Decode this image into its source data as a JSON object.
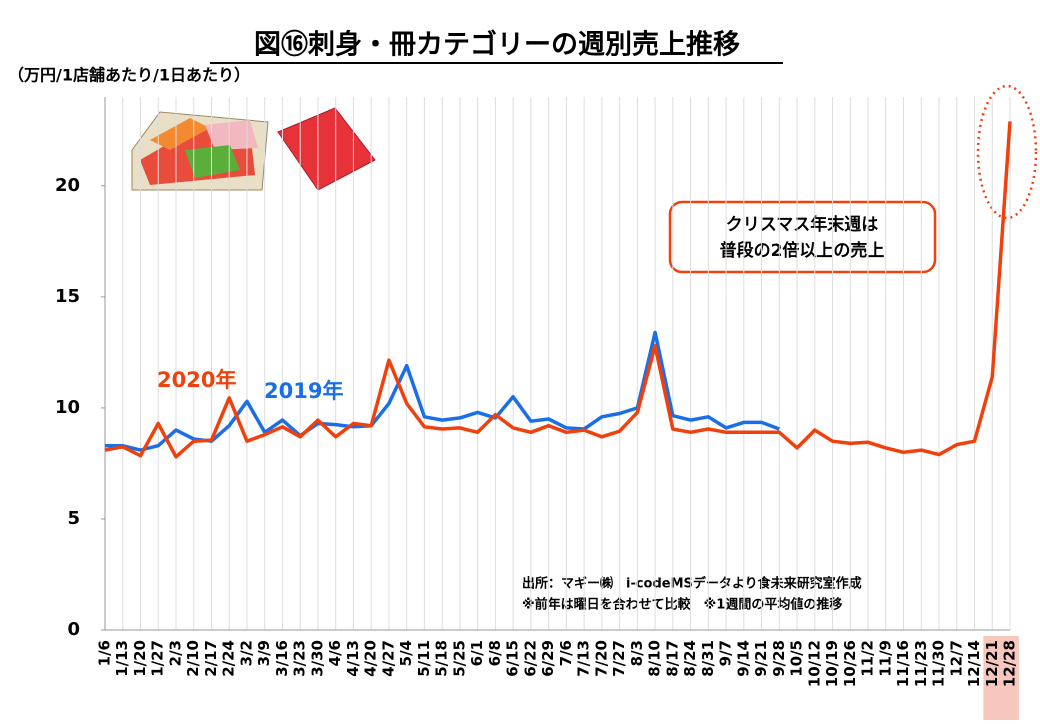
{
  "chart_data": {
    "type": "line",
    "title": "図⑯刺身・冊カテゴリーの週別売上推移",
    "y_label": "（万円/1店舗あたり/1日あたり）",
    "annotation": [
      "クリスマス年末週は",
      "普段の2倍以上の売上"
    ],
    "source": [
      "出所：マギー㈱　i-codeMSデータより食未来研究室作成",
      "※前年は曜日を合わせて比較　※1週間の平均値の推移"
    ],
    "categories": [
      "1/6",
      "1/13",
      "1/20",
      "1/27",
      "2/3",
      "2/10",
      "2/17",
      "2/24",
      "3/2",
      "3/9",
      "3/16",
      "3/23",
      "3/30",
      "4/6",
      "4/13",
      "4/20",
      "4/27",
      "5/4",
      "5/11",
      "5/18",
      "5/25",
      "6/1",
      "6/8",
      "6/15",
      "6/22",
      "6/29",
      "7/6",
      "7/13",
      "7/20",
      "7/27",
      "8/3",
      "8/10",
      "8/17",
      "8/24",
      "8/31",
      "9/7",
      "9/14",
      "9/21",
      "9/28",
      "10/5",
      "10/12",
      "10/19",
      "10/26",
      "11/2",
      "11/9",
      "11/16",
      "11/23",
      "11/30",
      "12/7",
      "12/14",
      "12/21",
      "12/28"
    ],
    "series": [
      {
        "name": "2020年",
        "color": "#f0400c",
        "values": [
          8.1,
          8.25,
          7.85,
          9.3,
          7.8,
          8.5,
          8.55,
          10.45,
          8.5,
          8.8,
          9.15,
          8.7,
          9.45,
          8.7,
          9.3,
          9.2,
          12.15,
          10.2,
          9.15,
          9.05,
          9.1,
          8.9,
          9.7,
          9.1,
          8.9,
          9.2,
          8.9,
          9.0,
          8.7,
          8.95,
          9.8,
          12.8,
          9.05,
          8.9,
          9.05,
          8.9,
          8.9,
          8.9,
          8.9,
          8.2,
          9.0,
          8.5,
          8.4,
          8.45,
          8.2,
          8.0,
          8.1,
          7.9,
          8.35,
          8.5,
          11.4,
          22.9
        ]
      },
      {
        "name": "2019年",
        "color": "#1a6fe8",
        "values": [
          8.3,
          8.3,
          8.1,
          8.3,
          9.0,
          8.6,
          8.5,
          9.2,
          10.3,
          8.9,
          9.45,
          8.75,
          9.3,
          9.25,
          9.15,
          9.2,
          10.2,
          11.9,
          9.6,
          9.45,
          9.55,
          9.8,
          9.55,
          10.5,
          9.4,
          9.5,
          9.1,
          9.05,
          9.6,
          9.75,
          10.0,
          13.4,
          9.65,
          9.45,
          9.6,
          9.1,
          9.35,
          9.35,
          9.05,
          null,
          null,
          null,
          null,
          null,
          null,
          null,
          null,
          null,
          null,
          null,
          null,
          null
        ]
      }
    ],
    "ylim": [
      0,
      24
    ],
    "yticks": [
      0,
      5,
      10,
      15,
      20
    ],
    "grid": "x"
  }
}
